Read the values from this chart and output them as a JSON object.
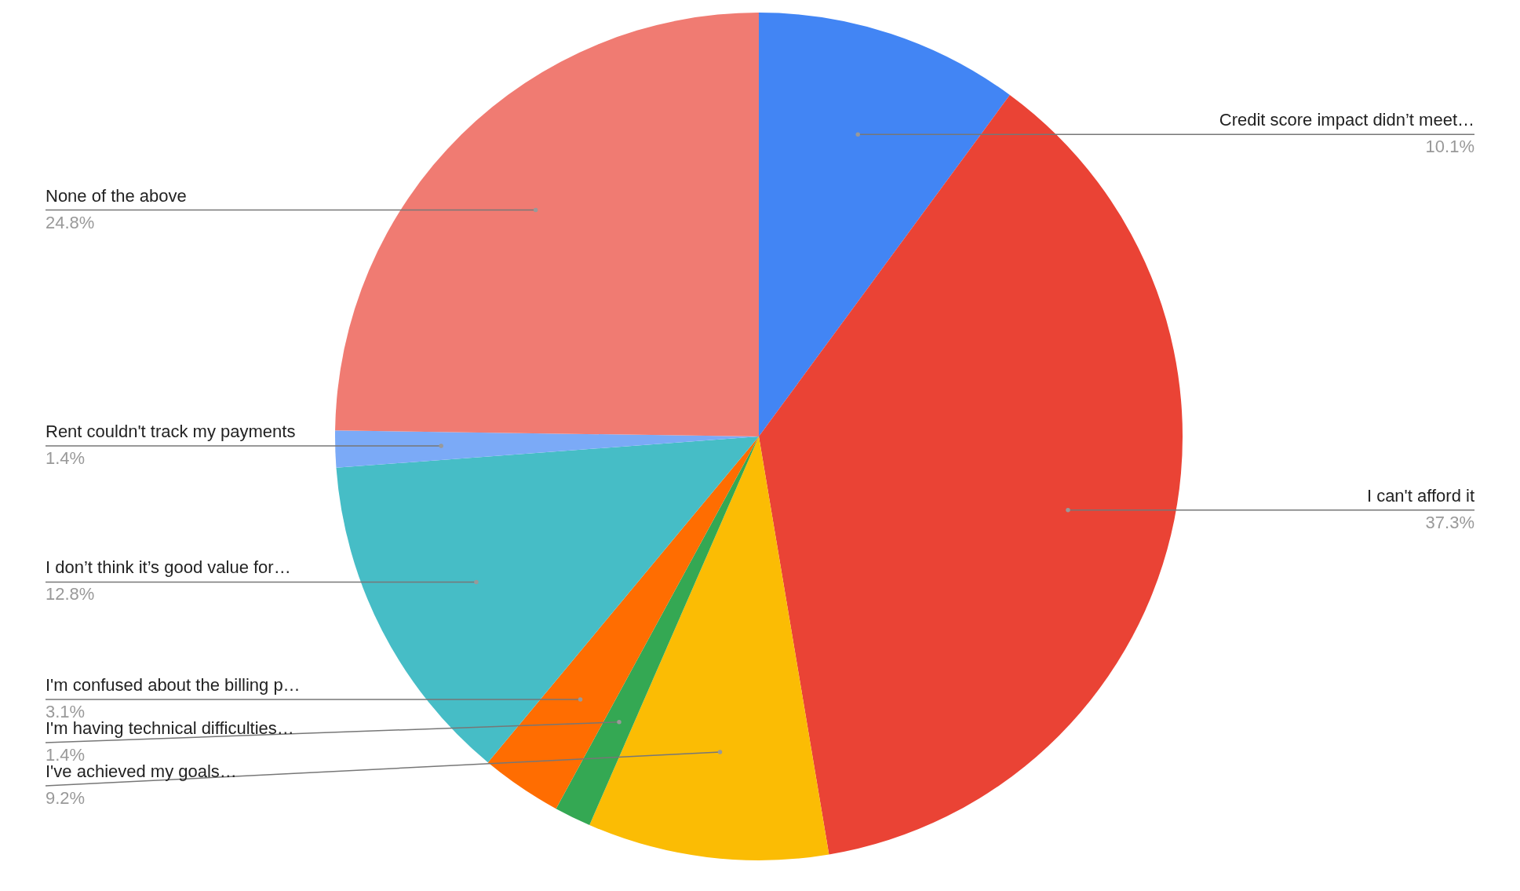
{
  "chart_data": {
    "type": "pie",
    "categories": [
      "Credit score impact didn’t meet…",
      "I can't afford it",
      "I've achieved my goals…",
      "I'm having technical difficulties…",
      "I'm confused about the billing p…",
      "I don’t think it’s good value for…",
      "Rent couldn't track my payments",
      "None of the above"
    ],
    "values": [
      10.1,
      37.3,
      9.2,
      1.4,
      3.1,
      12.8,
      1.4,
      24.8
    ],
    "colors": [
      "#4285f4",
      "#ea4335",
      "#fbbc04",
      "#34a853",
      "#ff6d01",
      "#46bdc6",
      "#7baaf7",
      "#f07b72"
    ],
    "value_labels": [
      "10.1%",
      "37.3%",
      "9.2%",
      "1.4%",
      "3.1%",
      "12.8%",
      "1.4%",
      "24.8%"
    ]
  }
}
